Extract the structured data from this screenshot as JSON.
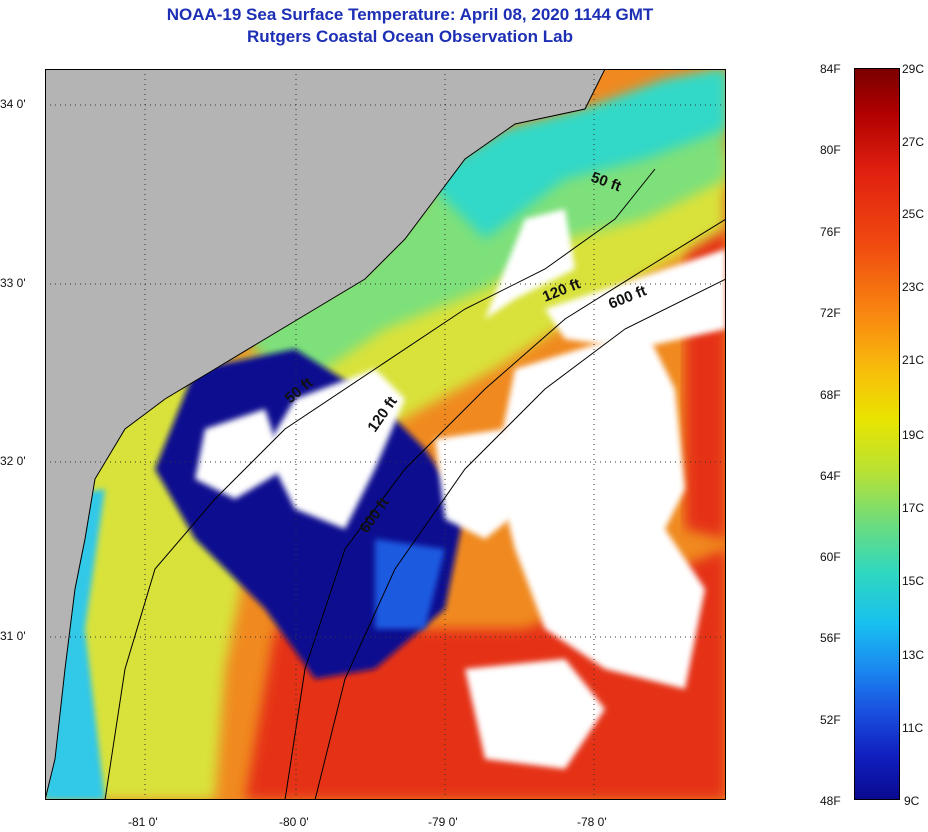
{
  "header": {
    "title": "NOAA-19 Sea Surface Temperature:  April 08, 2020 1144 GMT",
    "subtitle": "Rutgers Coastal Ocean Observation Lab"
  },
  "map": {
    "lon_ticks": [
      "-81 0'",
      "-80 0'",
      "-79 0'",
      "-78 0'"
    ],
    "lat_ticks": [
      "34 0'",
      "33 0'",
      "32 0'",
      "31 0'"
    ],
    "contours": [
      "50 ft",
      "120 ft",
      "600 ft",
      "50 ft",
      "120 ft",
      "600 ft"
    ],
    "colors": {
      "land": "#b4b4b4",
      "cloud": "#ffffff",
      "cold": "#0a1090",
      "cool": "#30d0d0",
      "mild": "#e5e52a",
      "warm": "#f08a20",
      "hot": "#e53018"
    }
  },
  "colorbar": {
    "fahrenheit": [
      "84F",
      "80F",
      "76F",
      "72F",
      "68F",
      "64F",
      "60F",
      "56F",
      "52F",
      "48F"
    ],
    "celsius": [
      "29C",
      "27C",
      "25C",
      "23C",
      "21C",
      "19C",
      "17C",
      "15C",
      "13C",
      "11C",
      "9C"
    ]
  }
}
